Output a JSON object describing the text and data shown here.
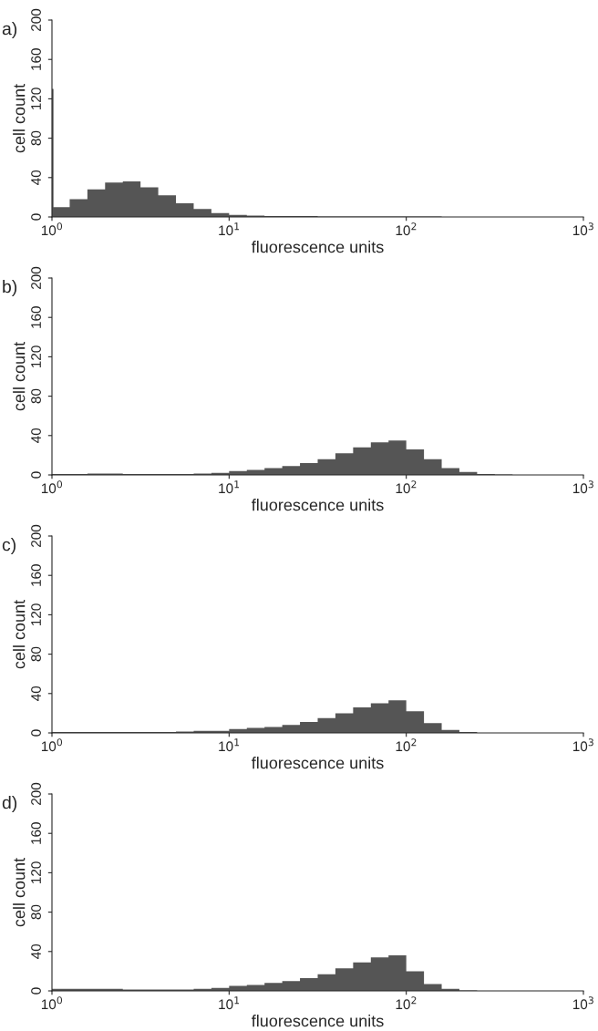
{
  "chart_data": [
    {
      "type": "histogram",
      "title": "a)",
      "xlabel": "fluorescence units",
      "ylabel": "cell count",
      "log": "x",
      "color": "#555555",
      "bins": [
        1,
        1.02,
        1.259,
        1.585,
        1.995,
        2.512,
        3.162,
        3.981,
        5.012,
        6.31,
        7.943,
        10,
        12.59,
        15.85,
        19.95,
        25.12,
        31.62,
        39.81,
        50.12,
        63.1,
        79.43,
        100,
        125.9,
        158.5,
        199.5,
        251.2,
        316.2,
        398.1,
        501.2,
        631,
        794.3,
        1000
      ],
      "values": [
        130,
        10,
        18,
        28,
        35,
        36,
        30,
        22,
        14,
        8,
        4,
        2,
        1.5,
        1,
        1,
        1,
        0.5,
        0.5,
        0.5,
        0.5,
        0.5,
        0.5,
        0.5,
        0,
        0,
        0,
        0,
        0,
        0,
        0,
        0
      ],
      "xlim": [
        1,
        1000
      ],
      "xticks": [
        {
          "value": 1,
          "label": "10$^{0}$"
        },
        {
          "value": 10,
          "label": "10$^{1}$"
        },
        {
          "value": 100,
          "label": "10$^{2}$"
        },
        {
          "value": 1000,
          "label": "10$^{3}$"
        }
      ],
      "ylim": [
        0,
        200
      ],
      "yticks": [
        0,
        40,
        80,
        120,
        160,
        200
      ]
    },
    {
      "type": "histogram",
      "title": "b)",
      "xlabel": "fluorescence units",
      "ylabel": "cell count",
      "log": "x",
      "color": "#555555",
      "bins": [
        1,
        1.259,
        1.585,
        1.995,
        2.512,
        3.162,
        3.981,
        5.012,
        6.31,
        7.943,
        10,
        12.59,
        15.85,
        19.95,
        25.12,
        31.62,
        39.81,
        50.12,
        63.1,
        79.43,
        100,
        125.9,
        158.5,
        199.5,
        251.2,
        316.2,
        398.1,
        501.2,
        631,
        794.3,
        1000
      ],
      "values": [
        1,
        1,
        1.5,
        1.5,
        1,
        1,
        1,
        1,
        1.5,
        2,
        4,
        5,
        7,
        9,
        12,
        16,
        22,
        28,
        33,
        35,
        26,
        16,
        7,
        3,
        1,
        0.5,
        0,
        0,
        0,
        0
      ],
      "xlim": [
        1,
        1000
      ],
      "xticks": [
        {
          "value": 1,
          "label": "10$^{0}$"
        },
        {
          "value": 10,
          "label": "10$^{1}$"
        },
        {
          "value": 100,
          "label": "10$^{2}$"
        },
        {
          "value": 1000,
          "label": "10$^{3}$"
        }
      ],
      "ylim": [
        0,
        200
      ],
      "yticks": [
        0,
        40,
        80,
        120,
        160,
        200
      ]
    },
    {
      "type": "histogram",
      "title": "c)",
      "xlabel": "fluorescence units",
      "ylabel": "cell count",
      "log": "x",
      "color": "#555555",
      "bins": [
        1,
        1.259,
        1.585,
        1.995,
        2.512,
        3.162,
        3.981,
        5.012,
        6.31,
        7.943,
        10,
        12.59,
        15.85,
        19.95,
        25.12,
        31.62,
        39.81,
        50.12,
        63.1,
        79.43,
        100,
        125.9,
        158.5,
        199.5,
        251.2,
        316.2,
        398.1,
        501.2,
        631,
        794.3,
        1000
      ],
      "values": [
        1,
        1,
        1,
        1,
        1,
        1,
        1,
        1.5,
        2,
        2,
        4,
        5,
        6,
        8,
        11,
        15,
        20,
        26,
        30,
        33,
        22,
        10,
        3,
        1,
        0,
        0,
        0,
        0,
        0,
        0
      ],
      "xlim": [
        1,
        1000
      ],
      "xticks": [
        {
          "value": 1,
          "label": "10$^{0}$"
        },
        {
          "value": 10,
          "label": "10$^{1}$"
        },
        {
          "value": 100,
          "label": "10$^{2}$"
        },
        {
          "value": 1000,
          "label": "10$^{3}$"
        }
      ],
      "ylim": [
        0,
        200
      ],
      "yticks": [
        0,
        40,
        80,
        120,
        160,
        200
      ]
    },
    {
      "type": "histogram",
      "title": "d)",
      "xlabel": "fluorescence units",
      "ylabel": "cell count",
      "log": "x",
      "color": "#555555",
      "bins": [
        1,
        1.259,
        1.585,
        1.995,
        2.512,
        3.162,
        3.981,
        5.012,
        6.31,
        7.943,
        10,
        12.59,
        15.85,
        19.95,
        25.12,
        31.62,
        39.81,
        50.12,
        63.1,
        79.43,
        100,
        125.9,
        158.5,
        199.5,
        251.2,
        316.2,
        398.1,
        501.2,
        631,
        794.3,
        1000
      ],
      "values": [
        2,
        2,
        2,
        2,
        1.5,
        1.5,
        1.5,
        1.5,
        2,
        3,
        5,
        6,
        8,
        10,
        13,
        17,
        23,
        29,
        34,
        36,
        20,
        7,
        2,
        0.5,
        0,
        0,
        0,
        0,
        0,
        0
      ],
      "xlim": [
        1,
        1000
      ],
      "xticks": [
        {
          "value": 1,
          "label": "10$^{0}$"
        },
        {
          "value": 10,
          "label": "10$^{1}$"
        },
        {
          "value": 100,
          "label": "10$^{2}$"
        },
        {
          "value": 1000,
          "label": "10$^{3}$"
        }
      ],
      "ylim": [
        0,
        200
      ],
      "yticks": [
        0,
        40,
        80,
        120,
        160,
        200
      ]
    }
  ]
}
